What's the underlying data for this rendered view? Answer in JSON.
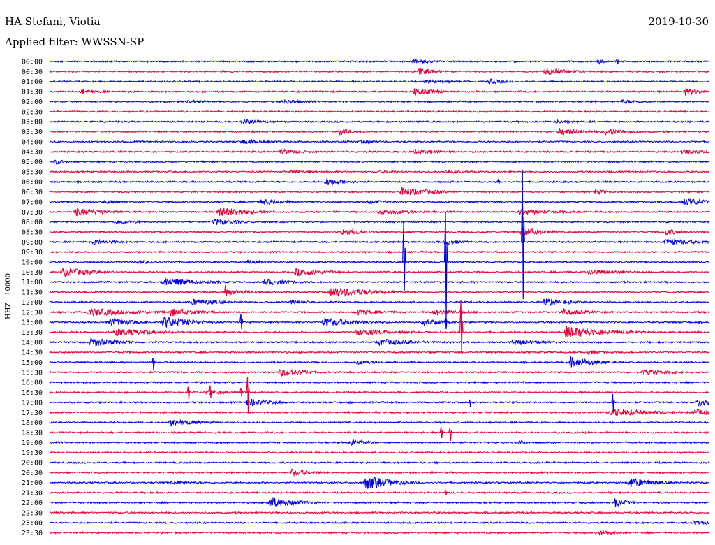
{
  "header": {
    "station": "HA Stefani, Viotia",
    "date": "2019-10-30",
    "filter": "Applied filter: WWSSN-SP",
    "channel": "HHZ - 10000"
  },
  "colors": {
    "trace_a": "#0000e6",
    "trace_b": "#e6003a"
  },
  "chart_data": {
    "type": "line",
    "title": "HA Stefani, Viotia",
    "subtitle": "Applied filter: WWSSN-SP",
    "ylabel": "HHZ - 10000",
    "xlabel": "",
    "grid": false,
    "legend": "none",
    "y_tick_labels": [
      "00:00",
      "00:30",
      "01:00",
      "01:30",
      "02:00",
      "02:30",
      "03:00",
      "03:30",
      "04:00",
      "04:30",
      "05:00",
      "05:30",
      "06:00",
      "06:30",
      "07:00",
      "07:30",
      "08:00",
      "08:30",
      "09:00",
      "09:30",
      "10:00",
      "10:30",
      "11:00",
      "11:30",
      "12:00",
      "12:30",
      "13:00",
      "13:30",
      "14:00",
      "14:30",
      "15:00",
      "15:30",
      "16:00",
      "16:30",
      "17:00",
      "17:30",
      "18:00",
      "18:30",
      "19:00",
      "19:30",
      "20:00",
      "20:30",
      "21:00",
      "21:30",
      "22:00",
      "22:30",
      "23:00",
      "23:30"
    ],
    "x_range_minutes": [
      0,
      30
    ],
    "events": [
      {
        "row": 0,
        "t": 16.5,
        "amp": 4,
        "dur": 1.2
      },
      {
        "row": 0,
        "t": 25.0,
        "amp": 4,
        "dur": 0.3
      },
      {
        "row": 1,
        "t": 16.8,
        "amp": 6,
        "dur": 0.8
      },
      {
        "row": 1,
        "t": 22.5,
        "amp": 5,
        "dur": 1.3
      },
      {
        "row": 2,
        "t": 17.1,
        "amp": 3,
        "dur": 1.5
      },
      {
        "row": 2,
        "t": 20.0,
        "amp": 4,
        "dur": 0.8
      },
      {
        "row": 3,
        "t": 1.5,
        "amp": 3,
        "dur": 1.2
      },
      {
        "row": 3,
        "t": 1.5,
        "amp": 5,
        "dur": 0.3
      },
      {
        "row": 3,
        "t": 16.6,
        "amp": 6,
        "dur": 1.0
      },
      {
        "row": 3,
        "t": 28.9,
        "amp": 6,
        "dur": 0.8
      },
      {
        "row": 4,
        "t": 6.3,
        "amp": 3,
        "dur": 1.0
      },
      {
        "row": 4,
        "t": 10.6,
        "amp": 4,
        "dur": 1.2
      },
      {
        "row": 4,
        "t": 26.0,
        "amp": 3,
        "dur": 1.5
      },
      {
        "row": 6,
        "t": 8.8,
        "amp": 4,
        "dur": 1.0
      },
      {
        "row": 6,
        "t": 23.0,
        "amp": 3,
        "dur": 1.0
      },
      {
        "row": 7,
        "t": 13.2,
        "amp": 5,
        "dur": 0.8
      },
      {
        "row": 7,
        "t": 23.2,
        "amp": 6,
        "dur": 1.2
      },
      {
        "row": 7,
        "t": 25.3,
        "amp": 6,
        "dur": 1.2
      },
      {
        "row": 8,
        "t": 8.7,
        "amp": 4,
        "dur": 1.3
      },
      {
        "row": 8,
        "t": 14.2,
        "amp": 3,
        "dur": 1.0
      },
      {
        "row": 9,
        "t": 10.5,
        "amp": 4,
        "dur": 1.3
      },
      {
        "row": 9,
        "t": 16.6,
        "amp": 4,
        "dur": 1.3
      },
      {
        "row": 9,
        "t": 28.8,
        "amp": 4,
        "dur": 1.3
      },
      {
        "row": 10,
        "t": 0.3,
        "amp": 4,
        "dur": 0.6
      },
      {
        "row": 11,
        "t": 11.0,
        "amp": 3,
        "dur": 1.2
      },
      {
        "row": 11,
        "t": 15.0,
        "amp": 3,
        "dur": 1.2
      },
      {
        "row": 11,
        "t": 18.0,
        "amp": 3,
        "dur": 1.5
      },
      {
        "row": 12,
        "t": 12.6,
        "amp": 6,
        "dur": 1.0
      },
      {
        "row": 13,
        "t": 16.0,
        "amp": 7,
        "dur": 1.4
      },
      {
        "row": 13,
        "t": 24.8,
        "amp": 4,
        "dur": 0.8
      },
      {
        "row": 14,
        "t": 2.5,
        "amp": 3,
        "dur": 1.2
      },
      {
        "row": 14,
        "t": 9.6,
        "amp": 5,
        "dur": 1.2
      },
      {
        "row": 14,
        "t": 14.5,
        "amp": 3,
        "dur": 1.5
      },
      {
        "row": 14,
        "t": 28.8,
        "amp": 6,
        "dur": 1.3
      },
      {
        "row": 15,
        "t": 1.2,
        "amp": 6,
        "dur": 1.4
      },
      {
        "row": 15,
        "t": 7.7,
        "amp": 7,
        "dur": 1.6
      },
      {
        "row": 15,
        "t": 15.0,
        "amp": 4,
        "dur": 2.0
      },
      {
        "row": 15,
        "t": 21.4,
        "amp": 4,
        "dur": 2.0
      },
      {
        "row": 16,
        "t": 7.5,
        "amp": 5,
        "dur": 1.3
      },
      {
        "row": 16,
        "t": 3.0,
        "amp": 3,
        "dur": 1.5
      },
      {
        "row": 17,
        "t": 13.3,
        "amp": 5,
        "dur": 1.2
      },
      {
        "row": 17,
        "t": 21.5,
        "amp": 7,
        "dur": 1.0
      },
      {
        "row": 17,
        "t": 28.0,
        "amp": 5,
        "dur": 0.8
      },
      {
        "row": 18,
        "t": 2.0,
        "amp": 4,
        "dur": 1.2
      },
      {
        "row": 18,
        "t": 18.0,
        "amp": 4,
        "dur": 1.0
      },
      {
        "row": 18,
        "t": 28.0,
        "amp": 6,
        "dur": 1.5
      },
      {
        "row": 20,
        "t": 4.0,
        "amp": 3,
        "dur": 1.2
      },
      {
        "row": 20,
        "t": 9.0,
        "amp": 3,
        "dur": 1.2
      },
      {
        "row": 21,
        "t": 0.6,
        "amp": 7,
        "dur": 1.4
      },
      {
        "row": 21,
        "t": 11.2,
        "amp": 6,
        "dur": 1.4
      },
      {
        "row": 21,
        "t": 24.5,
        "amp": 4,
        "dur": 2.0
      },
      {
        "row": 22,
        "t": 5.2,
        "amp": 7,
        "dur": 1.6
      },
      {
        "row": 22,
        "t": 9.8,
        "amp": 5,
        "dur": 1.3
      },
      {
        "row": 23,
        "t": 12.8,
        "amp": 8,
        "dur": 2.0
      },
      {
        "row": 23,
        "t": 8.0,
        "amp": 4,
        "dur": 1.5
      },
      {
        "row": 24,
        "t": 6.5,
        "amp": 5,
        "dur": 1.4
      },
      {
        "row": 24,
        "t": 22.5,
        "amp": 6,
        "dur": 1.2
      },
      {
        "row": 24,
        "t": 11.0,
        "amp": 3,
        "dur": 1.5
      },
      {
        "row": 25,
        "t": 1.8,
        "amp": 6,
        "dur": 2.5
      },
      {
        "row": 25,
        "t": 5.5,
        "amp": 6,
        "dur": 1.5
      },
      {
        "row": 25,
        "t": 14.0,
        "amp": 5,
        "dur": 1.2
      },
      {
        "row": 25,
        "t": 17.5,
        "amp": 5,
        "dur": 1.3
      },
      {
        "row": 25,
        "t": 23.3,
        "amp": 6,
        "dur": 1.2
      },
      {
        "row": 26,
        "t": 2.8,
        "amp": 7,
        "dur": 1.0
      },
      {
        "row": 26,
        "t": 5.2,
        "amp": 9,
        "dur": 1.3
      },
      {
        "row": 26,
        "t": 12.5,
        "amp": 7,
        "dur": 1.6
      },
      {
        "row": 26,
        "t": 17.0,
        "amp": 5,
        "dur": 1.0
      },
      {
        "row": 27,
        "t": 3.0,
        "amp": 6,
        "dur": 2.0
      },
      {
        "row": 27,
        "t": 14.0,
        "amp": 5,
        "dur": 2.0
      },
      {
        "row": 27,
        "t": 23.5,
        "amp": 9,
        "dur": 2.0
      },
      {
        "row": 28,
        "t": 1.9,
        "amp": 7,
        "dur": 1.3
      },
      {
        "row": 28,
        "t": 15.0,
        "amp": 5,
        "dur": 2.0
      },
      {
        "row": 28,
        "t": 21.0,
        "amp": 5,
        "dur": 1.3
      },
      {
        "row": 29,
        "t": 24.5,
        "amp": 3,
        "dur": 1.0
      },
      {
        "row": 30,
        "t": 23.7,
        "amp": 8,
        "dur": 1.2
      },
      {
        "row": 30,
        "t": 14.0,
        "amp": 3,
        "dur": 1.5
      },
      {
        "row": 31,
        "t": 10.5,
        "amp": 6,
        "dur": 1.3
      },
      {
        "row": 31,
        "t": 27.0,
        "amp": 4,
        "dur": 1.5
      },
      {
        "row": 33,
        "t": 7.2,
        "amp": 5,
        "dur": 0.8
      },
      {
        "row": 34,
        "t": 9.0,
        "amp": 6,
        "dur": 1.2
      },
      {
        "row": 34,
        "t": 29.5,
        "amp": 6,
        "dur": 1.3
      },
      {
        "row": 35,
        "t": 25.5,
        "amp": 6,
        "dur": 2.2
      },
      {
        "row": 35,
        "t": 29.3,
        "amp": 5,
        "dur": 1.3
      },
      {
        "row": 36,
        "t": 5.5,
        "amp": 5,
        "dur": 1.6
      },
      {
        "row": 38,
        "t": 13.7,
        "amp": 5,
        "dur": 0.8
      },
      {
        "row": 38,
        "t": 21.4,
        "amp": 3,
        "dur": 0.8
      },
      {
        "row": 41,
        "t": 11.0,
        "amp": 6,
        "dur": 1.0
      },
      {
        "row": 42,
        "t": 14.4,
        "amp": 11,
        "dur": 1.2
      },
      {
        "row": 42,
        "t": 26.4,
        "amp": 7,
        "dur": 1.2
      },
      {
        "row": 42,
        "t": 5.5,
        "amp": 3,
        "dur": 1.2
      },
      {
        "row": 44,
        "t": 10.0,
        "amp": 8,
        "dur": 1.4
      },
      {
        "row": 44,
        "t": 25.8,
        "amp": 6,
        "dur": 0.6
      },
      {
        "row": 46,
        "t": 29.3,
        "amp": 4,
        "dur": 1.0
      },
      {
        "row": 47,
        "t": 25.0,
        "amp": 4,
        "dur": 1.0
      }
    ],
    "spikes": [
      {
        "row": 0,
        "t": 25.8,
        "up": 4,
        "down": 4
      },
      {
        "row": 12,
        "t": 20.4,
        "up": 3,
        "down": 3
      },
      {
        "row": 18,
        "t": 21.5,
        "up": 102,
        "down": 82
      },
      {
        "row": 20,
        "t": 16.1,
        "up": 58,
        "down": 42
      },
      {
        "row": 20,
        "t": 18.0,
        "up": 72,
        "down": 88
      },
      {
        "row": 23,
        "t": 8.0,
        "up": 10,
        "down": 6
      },
      {
        "row": 26,
        "t": 8.7,
        "up": 12,
        "down": 10
      },
      {
        "row": 26,
        "t": 18.0,
        "up": 6,
        "down": 10
      },
      {
        "row": 27,
        "t": 18.7,
        "up": 46,
        "down": 30
      },
      {
        "row": 30,
        "t": 4.7,
        "up": 6,
        "down": 12
      },
      {
        "row": 33,
        "t": 6.3,
        "up": 8,
        "down": 10
      },
      {
        "row": 33,
        "t": 7.3,
        "up": 10,
        "down": 8
      },
      {
        "row": 33,
        "t": 8.7,
        "up": 6,
        "down": 6
      },
      {
        "row": 33,
        "t": 9.0,
        "up": 22,
        "down": 30
      },
      {
        "row": 34,
        "t": 19.1,
        "up": 4,
        "down": 6
      },
      {
        "row": 34,
        "t": 25.6,
        "up": 12,
        "down": 14
      },
      {
        "row": 37,
        "t": 17.8,
        "up": 8,
        "down": 8
      },
      {
        "row": 37,
        "t": 18.2,
        "up": 6,
        "down": 12
      },
      {
        "row": 43,
        "t": 18.0,
        "up": 3,
        "down": 3
      },
      {
        "row": 44,
        "t": 25.7,
        "up": 6,
        "down": 6
      }
    ]
  }
}
